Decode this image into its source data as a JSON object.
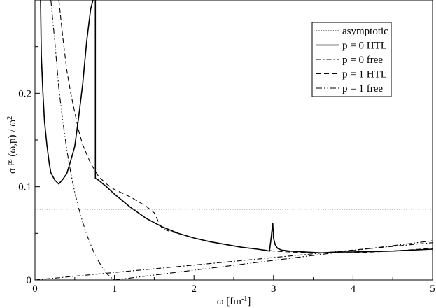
{
  "chart_data": {
    "type": "line",
    "title": "",
    "xlabel": "ω [fm⁻¹]",
    "ylabel": "σ ps (ω,p) / ω²",
    "xlim": [
      0,
      5
    ],
    "ylim": [
      0,
      0.3
    ],
    "xticks": [
      0,
      1,
      2,
      3,
      4,
      5
    ],
    "yticks": [
      0,
      0.1,
      0.2
    ],
    "ytick_labels": [
      "0",
      "0.1",
      "0.2"
    ],
    "grid": false,
    "legend_position": "top-right",
    "series": [
      {
        "name": "asymptotic",
        "style": "dotted",
        "x": [
          0,
          5
        ],
        "y": [
          0.076,
          0.076
        ]
      },
      {
        "name": "p = 0 HTL",
        "style": "solid",
        "segments": [
          {
            "x": [
              0.07,
              0.08,
              0.1,
              0.12,
              0.15,
              0.18,
              0.2,
              0.25,
              0.3,
              0.35,
              0.4,
              0.45,
              0.5,
              0.55,
              0.6,
              0.65,
              0.7,
              0.73
            ],
            "y": [
              0.3,
              0.24,
              0.2,
              0.17,
              0.145,
              0.125,
              0.115,
              0.107,
              0.103,
              0.108,
              0.114,
              0.128,
              0.143,
              0.175,
              0.21,
              0.255,
              0.29,
              0.3
            ]
          },
          {
            "x": [
              0.76,
              0.76,
              0.76,
              0.8,
              0.9,
              1.0,
              1.2,
              1.4,
              1.6,
              1.8,
              2.0,
              2.2,
              2.4,
              2.6,
              2.8,
              2.95,
              2.97,
              2.99,
              3.0,
              3.02,
              3.05,
              3.1,
              3.2,
              3.4,
              3.6,
              3.8,
              4.0,
              4.5,
              5.0
            ],
            "y": [
              0.3,
              0.15,
              0.109,
              0.107,
              0.1,
              0.092,
              0.078,
              0.066,
              0.057,
              0.05,
              0.045,
              0.041,
              0.038,
              0.035,
              0.033,
              0.031,
              0.045,
              0.061,
              0.045,
              0.038,
              0.034,
              0.032,
              0.031,
              0.03,
              0.029,
              0.03,
              0.03,
              0.031,
              0.033
            ]
          }
        ]
      },
      {
        "name": "p = 0 free",
        "style": "dashdot",
        "x": [
          0,
          1,
          2,
          3,
          4,
          5
        ],
        "y": [
          0,
          0.008,
          0.016,
          0.024,
          0.032,
          0.04
        ]
      },
      {
        "name": "p = 1 HTL",
        "style": "dashed",
        "x": [
          0.3,
          0.35,
          0.4,
          0.45,
          0.5,
          0.55,
          0.6,
          0.7,
          0.8,
          0.9,
          1.0,
          1.1,
          1.2,
          1.3,
          1.4,
          1.5,
          1.55,
          1.6,
          1.7,
          1.8,
          2.0,
          2.2,
          2.4,
          2.6,
          2.8,
          3.0,
          3.2,
          3.5,
          4.0,
          4.5,
          5.0
        ],
        "y": [
          0.3,
          0.26,
          0.225,
          0.2,
          0.18,
          0.16,
          0.145,
          0.125,
          0.111,
          0.103,
          0.097,
          0.093,
          0.089,
          0.084,
          0.079,
          0.072,
          0.063,
          0.055,
          0.052,
          0.05,
          0.045,
          0.041,
          0.038,
          0.035,
          0.033,
          0.031,
          0.03,
          0.029,
          0.029,
          0.031,
          0.034
        ]
      },
      {
        "name": "p = 1 free",
        "style": "dashdotdot",
        "segments": [
          {
            "x": [
              0.2,
              0.25,
              0.3,
              0.35,
              0.4,
              0.45,
              0.5,
              0.55,
              0.6,
              0.65,
              0.7,
              0.75,
              0.8,
              0.85,
              0.9,
              0.95,
              1.0
            ],
            "y": [
              0.3,
              0.255,
              0.205,
              0.17,
              0.14,
              0.115,
              0.094,
              0.077,
              0.062,
              0.049,
              0.038,
              0.028,
              0.02,
              0.013,
              0.007,
              0.003,
              0
            ]
          },
          {
            "x": [
              1.0,
              2.0,
              3.0,
              4.0,
              5.0
            ],
            "y": [
              0,
              0.0105,
              0.021,
              0.0315,
              0.042
            ]
          }
        ]
      }
    ]
  }
}
